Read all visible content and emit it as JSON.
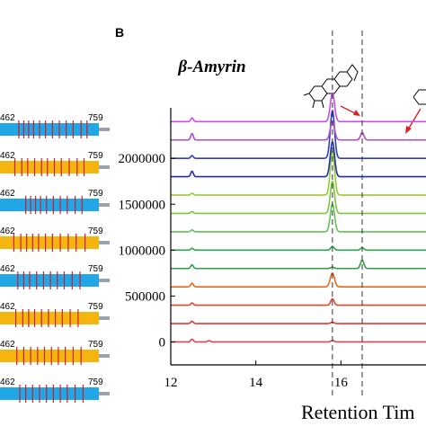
{
  "panel_b": {
    "label": "B"
  },
  "left_panel": {
    "start_label": "462",
    "end_label": "759",
    "bars": [
      {
        "color": "#22a7e6",
        "red_marks": [
          19,
          24,
          29,
          34,
          40,
          46,
          53,
          60,
          67,
          74,
          82,
          88
        ]
      },
      {
        "color": "#f5b50f",
        "red_marks": [
          15,
          22,
          28,
          35,
          42,
          48,
          55,
          62,
          70,
          78,
          85
        ]
      },
      {
        "color": "#22a7e6",
        "red_marks": [
          26,
          31,
          36,
          41,
          47,
          54,
          61,
          68,
          76,
          83
        ]
      },
      {
        "color": "#f5b50f",
        "red_marks": [
          14,
          21,
          27,
          33,
          39,
          46,
          53,
          61,
          69,
          77,
          86
        ]
      },
      {
        "color": "#22a7e6",
        "red_marks": [
          18,
          24,
          30,
          37,
          44,
          51,
          58,
          65,
          73,
          81
        ]
      },
      {
        "color": "#f5b50f",
        "red_marks": [
          16,
          23,
          29,
          35,
          42,
          49,
          56,
          63,
          71,
          79
        ]
      },
      {
        "color": "#f5b50f",
        "red_marks": [
          17,
          24,
          31,
          38,
          45,
          52,
          59,
          66,
          74,
          82
        ]
      },
      {
        "color": "#22a7e6",
        "red_marks": [
          20,
          26,
          33,
          40,
          47,
          54,
          61,
          68,
          76,
          84
        ]
      }
    ]
  },
  "chart_data": {
    "type": "line",
    "title": "β-Amyrin",
    "xlabel": "Retention Tim",
    "ylabel": "",
    "xlim": [
      12,
      18
    ],
    "ylim": [
      -250000,
      2550000
    ],
    "x_ticks": [
      12,
      14,
      16
    ],
    "y_ticks": [
      0,
      500000,
      1000000,
      1500000,
      2000000
    ],
    "reference_lines_x": [
      15.8,
      16.5
    ],
    "common_peaks": [
      {
        "x": 12.5,
        "height": 20000,
        "width": 0.03
      },
      {
        "x": 15.8,
        "height": 15000,
        "width": 0.04
      }
    ],
    "series": [
      {
        "color": "#e8414b",
        "offset": 0,
        "peaks": [
          {
            "x": 12.5,
            "height": 30000,
            "width": 0.03
          },
          {
            "x": 12.9,
            "height": 15000,
            "width": 0.03
          }
        ]
      },
      {
        "color": "#e23a31",
        "offset": 200000,
        "peaks": [
          {
            "x": 12.5,
            "height": 25000,
            "width": 0.03
          }
        ]
      },
      {
        "color": "#d94a2a",
        "offset": 400000,
        "peaks": [
          {
            "x": 12.5,
            "height": 25000,
            "width": 0.03
          },
          {
            "x": 15.8,
            "height": 70000,
            "width": 0.04
          }
        ]
      },
      {
        "color": "#e56a1d",
        "offset": 600000,
        "peaks": [
          {
            "x": 12.5,
            "height": 40000,
            "width": 0.03
          },
          {
            "x": 15.8,
            "height": 150000,
            "width": 0.05
          }
        ]
      },
      {
        "color": "#2f9e44",
        "offset": 800000,
        "peaks": [
          {
            "x": 12.5,
            "height": 40000,
            "width": 0.03
          },
          {
            "x": 16.5,
            "height": 90000,
            "width": 0.04
          }
        ]
      },
      {
        "color": "#2aa84a",
        "offset": 1000000,
        "peaks": [
          {
            "x": 12.5,
            "height": 20000,
            "width": 0.03
          },
          {
            "x": 15.8,
            "height": 40000,
            "width": 0.04
          },
          {
            "x": 16.5,
            "height": 25000,
            "width": 0.04
          }
        ]
      },
      {
        "color": "#61c25a",
        "offset": 1200000,
        "peaks": [
          {
            "x": 12.5,
            "height": 20000,
            "width": 0.03
          },
          {
            "x": 15.8,
            "height": 300000,
            "width": 0.05
          }
        ]
      },
      {
        "color": "#7cc63e",
        "offset": 1400000,
        "peaks": [
          {
            "x": 12.5,
            "height": 20000,
            "width": 0.03
          },
          {
            "x": 15.8,
            "height": 350000,
            "width": 0.05
          }
        ]
      },
      {
        "color": "#96cc33",
        "offset": 1600000,
        "peaks": [
          {
            "x": 12.5,
            "height": 20000,
            "width": 0.03
          },
          {
            "x": 15.8,
            "height": 480000,
            "width": 0.05
          }
        ]
      },
      {
        "color": "#1f2fa8",
        "offset": 1800000,
        "peaks": [
          {
            "x": 12.5,
            "height": 60000,
            "width": 0.03
          },
          {
            "x": 15.8,
            "height": 380000,
            "width": 0.05
          }
        ]
      },
      {
        "color": "#2f3fc0",
        "offset": 2000000,
        "peaks": [
          {
            "x": 12.5,
            "height": 30000,
            "width": 0.03
          },
          {
            "x": 15.8,
            "height": 520000,
            "width": 0.05
          }
        ]
      },
      {
        "color": "#b24ad0",
        "offset": 2200000,
        "peaks": [
          {
            "x": 12.5,
            "height": 70000,
            "width": 0.03
          },
          {
            "x": 15.8,
            "height": 200000,
            "width": 0.05
          },
          {
            "x": 16.5,
            "height": 80000,
            "width": 0.04
          }
        ]
      },
      {
        "color": "#c44ee8",
        "offset": 2400000,
        "peaks": [
          {
            "x": 12.5,
            "height": 40000,
            "width": 0.03
          },
          {
            "x": 15.8,
            "height": 310000,
            "width": 0.05
          }
        ]
      }
    ]
  }
}
